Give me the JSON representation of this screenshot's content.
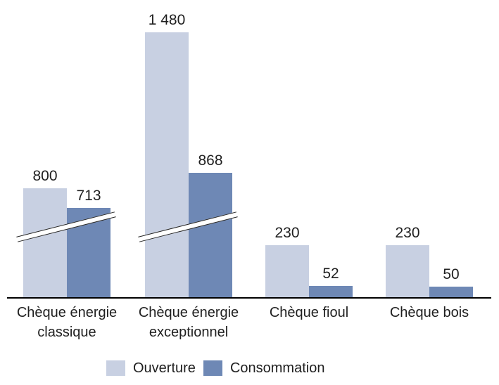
{
  "chart_data": {
    "type": "bar",
    "title": "",
    "xlabel": "",
    "ylabel": "",
    "grid": false,
    "legend_position": "bottom",
    "axis": {
      "y_axis_visible": false,
      "baseline_visible": true,
      "broken_axis": true,
      "broken_axis_note": "diagonal break marks cut through the bars of the first two categories"
    },
    "categories": [
      {
        "label_lines": [
          "Chèque énergie",
          "classique"
        ],
        "broken_axis": true
      },
      {
        "label_lines": [
          "Chèque énergie",
          "exceptionnel"
        ],
        "broken_axis": true
      },
      {
        "label_lines": [
          "Chèque fioul"
        ],
        "broken_axis": false
      },
      {
        "label_lines": [
          "Chèque bois"
        ],
        "broken_axis": false
      }
    ],
    "series": [
      {
        "name": "Ouverture",
        "color": "#c8d0e2",
        "values": [
          800,
          1480,
          230,
          230
        ],
        "labels": [
          "800",
          "1 480",
          "230",
          "230"
        ]
      },
      {
        "name": "Consommation",
        "color": "#6e88b5",
        "values": [
          713,
          868,
          52,
          50
        ],
        "labels": [
          "713",
          "868",
          "52",
          "50"
        ]
      }
    ]
  },
  "legend": {
    "items": [
      {
        "label": "Ouverture",
        "color": "#c8d0e2"
      },
      {
        "label": "Consommation",
        "color": "#6e88b5"
      }
    ]
  },
  "colors": {
    "background": "#ffffff",
    "bar_light": "#c8d0e2",
    "bar_dark": "#6e88b5",
    "axis": "#000000",
    "break_line": "#262626",
    "text": "#1f1f1f"
  }
}
